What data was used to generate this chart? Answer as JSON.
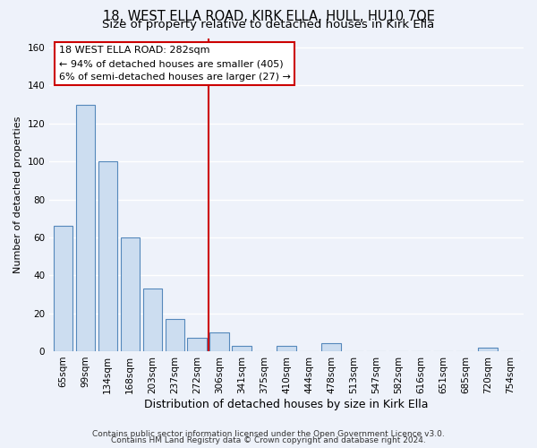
{
  "title": "18, WEST ELLA ROAD, KIRK ELLA, HULL, HU10 7QE",
  "subtitle": "Size of property relative to detached houses in Kirk Ella",
  "xlabel": "Distribution of detached houses by size in Kirk Ella",
  "ylabel": "Number of detached properties",
  "bar_labels": [
    "65sqm",
    "99sqm",
    "134sqm",
    "168sqm",
    "203sqm",
    "237sqm",
    "272sqm",
    "306sqm",
    "341sqm",
    "375sqm",
    "410sqm",
    "444sqm",
    "478sqm",
    "513sqm",
    "547sqm",
    "582sqm",
    "616sqm",
    "651sqm",
    "685sqm",
    "720sqm",
    "754sqm"
  ],
  "bar_values": [
    66,
    130,
    100,
    60,
    33,
    17,
    7,
    10,
    3,
    0,
    3,
    0,
    4,
    0,
    0,
    0,
    0,
    0,
    0,
    2,
    0
  ],
  "bar_color": "#ccddf0",
  "bar_edge_color": "#5588bb",
  "vline_x": 6.5,
  "vline_color": "#cc0000",
  "annotation_title": "18 WEST ELLA ROAD: 282sqm",
  "annotation_line1": "← 94% of detached houses are smaller (405)",
  "annotation_line2": "6% of semi-detached houses are larger (27) →",
  "annotation_box_facecolor": "#ffffff",
  "annotation_box_edgecolor": "#cc0000",
  "ylim": [
    0,
    165
  ],
  "yticks": [
    0,
    20,
    40,
    60,
    80,
    100,
    120,
    140,
    160
  ],
  "footer1": "Contains HM Land Registry data © Crown copyright and database right 2024.",
  "footer2": "Contains public sector information licensed under the Open Government Licence v3.0.",
  "background_color": "#eef2fa",
  "grid_color": "#ffffff",
  "title_fontsize": 10.5,
  "subtitle_fontsize": 9.5,
  "ylabel_fontsize": 8,
  "xlabel_fontsize": 9,
  "tick_fontsize": 7.5,
  "footer_fontsize": 6.5
}
